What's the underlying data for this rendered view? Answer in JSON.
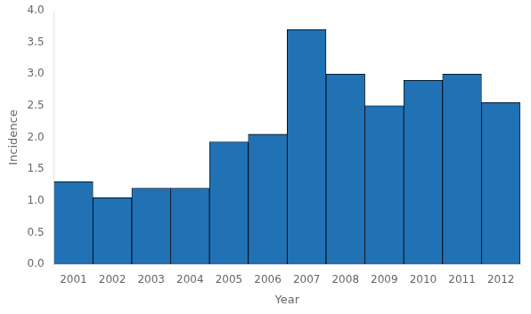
{
  "chart_data": {
    "type": "bar",
    "xlabel": "Year",
    "ylabel": "Incidence",
    "categories": [
      "2001",
      "2002",
      "2003",
      "2004",
      "2005",
      "2006",
      "2007",
      "2008",
      "2009",
      "2010",
      "2011",
      "2012"
    ],
    "values": [
      1.3,
      1.05,
      1.2,
      1.2,
      1.93,
      2.05,
      3.7,
      3.0,
      2.5,
      2.9,
      3.0,
      2.55
    ],
    "color": "#2171b5",
    "ylim": [
      0.0,
      4.0
    ],
    "yticks": [
      {
        "value": 0.0,
        "label": "0.0"
      },
      0.5,
      {
        "value": 1.0,
        "label": "1.0"
      },
      1.5,
      {
        "value": 2.0,
        "label": "2.0"
      },
      2.5,
      {
        "value": 3.0,
        "label": "3.0"
      },
      3.5,
      {
        "value": 4.0,
        "label": "4.0"
      }
    ],
    "grid": false
  }
}
